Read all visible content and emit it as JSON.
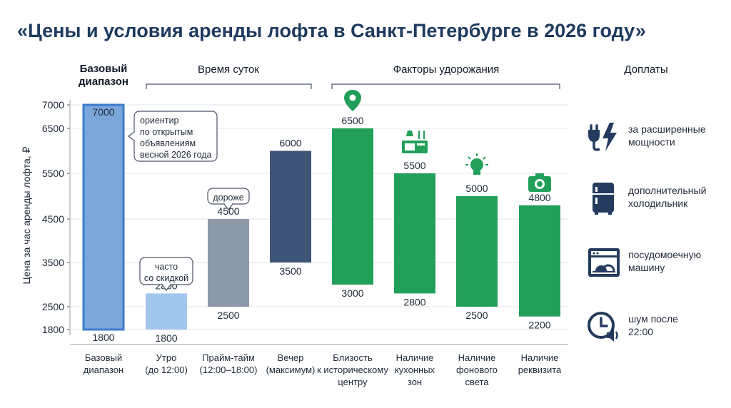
{
  "title": "«Цены и условия аренды лофта в Санкт-Петербурге в 2026 году»",
  "groups": [
    {
      "label": "Базовый диапазон",
      "lines": [
        "Базовый",
        "диапазон"
      ]
    },
    {
      "label": "Время суток"
    },
    {
      "label": "Факторы удорожания"
    },
    {
      "label": "Доплаты"
    }
  ],
  "chart_data": {
    "type": "bar",
    "subtype": "floating-range",
    "title": "«Цены и условия аренды лофта в Санкт-Петербурге в 2026 году»",
    "ylabel": "Цена за час аренды лофта, ₽",
    "ylim": [
      1800,
      7000
    ],
    "yticks": [
      1800,
      2500,
      3500,
      4500,
      5500,
      6500,
      7000
    ],
    "grid": true,
    "bars": [
      {
        "category": "Базовый диапазон",
        "lines": [
          "Базовый",
          "диапазон"
        ],
        "low": 1800,
        "high": 7000,
        "group": "Базовый диапазон",
        "color": "#7ba6da",
        "stroke": "#3d7cc9"
      },
      {
        "category": "Утро (до 12:00)",
        "lines": [
          "Утро",
          "(до 12:00)"
        ],
        "low": 1800,
        "high": 2800,
        "group": "Время суток",
        "color": "#a3c6ee"
      },
      {
        "category": "Прайм-тайм (12:00–18:00)",
        "lines": [
          "Прайм-тайм",
          "(12:00–18:00)"
        ],
        "low": 2500,
        "high": 4500,
        "group": "Время суток",
        "color": "#8d98a8"
      },
      {
        "category": "Вечер (максимум)",
        "lines": [
          "Вечер",
          "(максимум)"
        ],
        "low": 3500,
        "high": 6000,
        "group": "Время суток",
        "color": "#3e5577"
      },
      {
        "category": "Близость к историческому центру",
        "lines": [
          "Близость",
          "к историческому",
          "центру"
        ],
        "low": 3000,
        "high": 6500,
        "group": "Факторы удорожания",
        "color": "#22a05a",
        "icon": "location-pin-icon"
      },
      {
        "category": "Наличие кухонных зон",
        "lines": [
          "Наличие",
          "кухонных",
          "зон"
        ],
        "low": 2800,
        "high": 5500,
        "group": "Факторы удорожания",
        "color": "#22a05a",
        "icon": "kitchen-icon"
      },
      {
        "category": "Наличие фонового света",
        "lines": [
          "Наличие",
          "фонового",
          "света"
        ],
        "low": 2500,
        "high": 5000,
        "group": "Факторы удорожания",
        "color": "#22a05a",
        "icon": "light-bulb-icon"
      },
      {
        "category": "Наличие реквизита",
        "lines": [
          "Наличие",
          "реквизита"
        ],
        "low": 2200,
        "high": 4800,
        "group": "Факторы удорожания",
        "color": "#22a05a",
        "icon": "camera-icon"
      }
    ],
    "annotations": [
      {
        "text": "ориентир по открытым объявлениям весной 2026 года",
        "lines": [
          "ориентир",
          "по открытым",
          "объявлениям",
          "весной 2026 года"
        ],
        "bar": 0
      },
      {
        "text": "часто со скидкой",
        "lines": [
          "часто",
          "со скидкой"
        ],
        "bar": 1
      },
      {
        "text": "дороже",
        "lines": [
          "дороже"
        ],
        "bar": 2
      }
    ]
  },
  "surcharges": [
    {
      "icon": "plug-lightning-icon",
      "lines": [
        "за расширенные",
        "мощности"
      ]
    },
    {
      "icon": "refrigerator-icon",
      "lines": [
        "дополнительный",
        "холодильник"
      ]
    },
    {
      "icon": "dishwasher-icon",
      "lines": [
        "посудомоечную",
        "машину"
      ]
    },
    {
      "icon": "clock-sound-icon",
      "lines": [
        "шум после",
        "22:00"
      ]
    }
  ]
}
